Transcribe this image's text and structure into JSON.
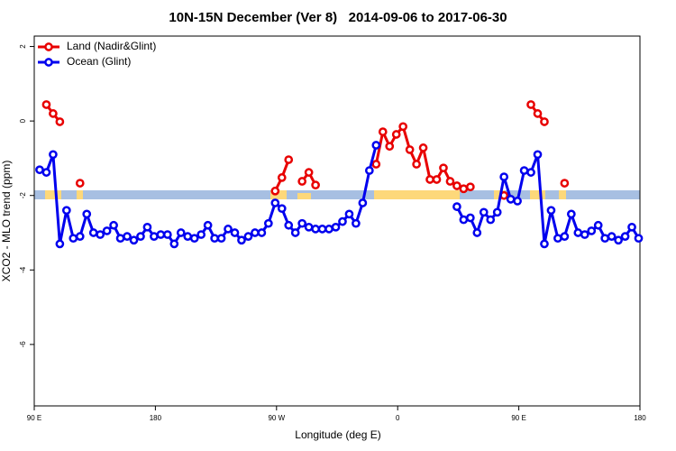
{
  "chart_data": {
    "type": "line",
    "title": "10N-15N December (Ver 8)   2014-09-06 to 2017-06-30",
    "x_label": "Longitude (deg E)",
    "y_label": "XCO2 - MLO trend (ppm)",
    "x": [
      94,
      99,
      104,
      109,
      114,
      119,
      124,
      129,
      134,
      139,
      144,
      149,
      154,
      159,
      164,
      169,
      174,
      179,
      184,
      189,
      194,
      199,
      204,
      209,
      214,
      219,
      224,
      229,
      234,
      239,
      244,
      249,
      254,
      259,
      264,
      269,
      274,
      279,
      284,
      289,
      294,
      299,
      304,
      309,
      314,
      319,
      324,
      329,
      334,
      339,
      344,
      349,
      354,
      359,
      364,
      369,
      374,
      379,
      384,
      389,
      394,
      399,
      404,
      409,
      414,
      419,
      424,
      429,
      434,
      439,
      444,
      449,
      454,
      459,
      464,
      469,
      474,
      479,
      484,
      489,
      494,
      499,
      504,
      509,
      514,
      519,
      524,
      529,
      534,
      539
    ],
    "series": [
      {
        "name": "Land (Nadir&Glint)",
        "color": "#e80000",
        "values": [
          null,
          0.44,
          0.2,
          -0.02,
          null,
          null,
          -1.67,
          null,
          null,
          null,
          null,
          null,
          null,
          null,
          null,
          null,
          null,
          null,
          null,
          null,
          null,
          null,
          null,
          null,
          null,
          null,
          null,
          null,
          null,
          null,
          null,
          null,
          null,
          null,
          null,
          -1.88,
          -1.52,
          -1.04,
          null,
          -1.62,
          -1.38,
          -1.72,
          null,
          null,
          null,
          null,
          null,
          null,
          null,
          null,
          -1.16,
          -0.29,
          -0.68,
          -0.36,
          -0.15,
          -0.77,
          -1.16,
          -0.72,
          -1.57,
          -1.57,
          -1.26,
          -1.62,
          -1.74,
          -1.82,
          -1.77,
          null,
          null,
          null,
          null,
          -2.0,
          null,
          null,
          null,
          0.44,
          0.2,
          -0.02,
          null,
          null,
          -1.67,
          null,
          null,
          null,
          null,
          null,
          null,
          null,
          null,
          null,
          null,
          null
        ]
      },
      {
        "name": "Ocean (Glint)",
        "color": "#0000ee",
        "values": [
          -1.31,
          -1.38,
          -0.9,
          -3.3,
          -2.4,
          -3.15,
          -3.1,
          -2.5,
          -3.0,
          -3.05,
          -2.95,
          -2.8,
          -3.15,
          -3.1,
          -3.2,
          -3.1,
          -2.85,
          -3.1,
          -3.05,
          -3.05,
          -3.3,
          -3.0,
          -3.1,
          -3.15,
          -3.05,
          -2.8,
          -3.15,
          -3.15,
          -2.9,
          -3.0,
          -3.2,
          -3.1,
          -3.0,
          -3.0,
          -2.75,
          -2.2,
          -2.35,
          -2.8,
          -3.0,
          -2.75,
          -2.85,
          -2.9,
          -2.9,
          -2.9,
          -2.85,
          -2.7,
          -2.5,
          -2.75,
          -2.2,
          -1.33,
          -0.65,
          null,
          null,
          null,
          null,
          null,
          null,
          null,
          null,
          null,
          null,
          null,
          -2.3,
          -2.65,
          -2.6,
          -3.0,
          -2.45,
          -2.65,
          -2.45,
          -1.5,
          -2.1,
          -2.15,
          -1.33,
          -1.38,
          -0.9,
          -3.3,
          -2.4,
          -3.15,
          -3.1,
          -2.5,
          -3.0,
          -3.05,
          -2.95,
          -2.8,
          -3.15,
          -3.1,
          -3.2,
          -3.1,
          -2.85,
          -3.15
        ]
      }
    ],
    "xlim": [
      90,
      540
    ],
    "xticks": [
      {
        "value": 90,
        "label": "90 E"
      },
      {
        "value": 180,
        "label": "180"
      },
      {
        "value": 270,
        "label": "90 W"
      },
      {
        "value": 360,
        "label": "0"
      },
      {
        "value": 450,
        "label": "90 E"
      },
      {
        "value": 540,
        "label": "180"
      }
    ],
    "ylim": [
      -7.65,
      2.28
    ],
    "yticks": [
      2,
      0,
      -2,
      -4,
      -6
    ],
    "legend": "top-left"
  }
}
